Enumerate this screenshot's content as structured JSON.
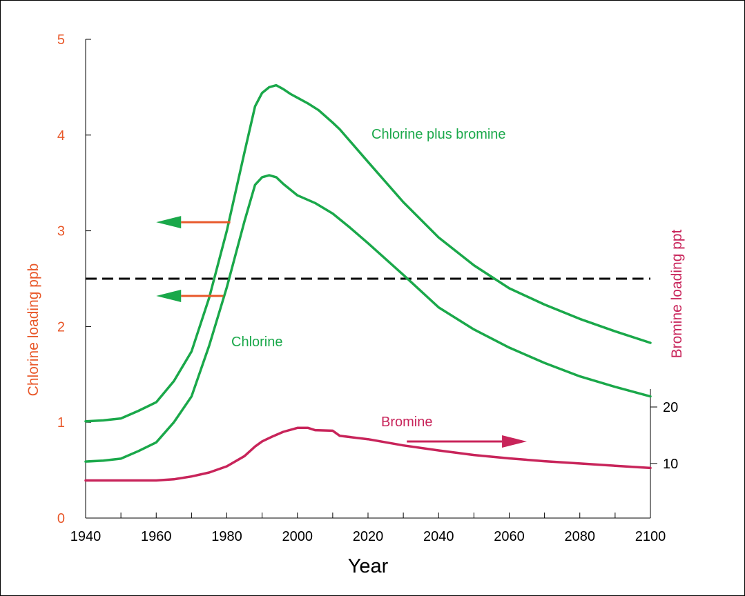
{
  "chart_data": {
    "type": "line",
    "x_ticks": [
      1940,
      1960,
      1980,
      2000,
      2020,
      2040,
      2060,
      2080,
      2100
    ],
    "xlim": [
      1940,
      2100
    ],
    "xlabel": "Year",
    "ylabel_left": "Chlorine  loading  ppb",
    "ylim_left": [
      0,
      5
    ],
    "y_ticks_left": [
      0,
      1,
      2,
      3,
      4,
      5
    ],
    "ylabel_right": "Bromine loading ppt",
    "y_ticks_right": [
      10,
      20
    ],
    "bromine_axis_map": {
      "ppt": [
        10,
        20
      ],
      "ppb_equivalent": [
        0.57,
        1.16
      ]
    },
    "threshold_ppb": 2.5,
    "colors": {
      "left_axis": "#e8582a",
      "chlorine": "#1aa84a",
      "bromine": "#c8245a",
      "threshold": "#000000"
    },
    "series": [
      {
        "name": "Chlorine plus bromine",
        "axis": "left",
        "x": [
          1940,
          1945,
          1950,
          1955,
          1960,
          1965,
          1970,
          1975,
          1980,
          1985,
          1988,
          1990,
          1992,
          1994,
          1996,
          1998,
          2000,
          2003,
          2006,
          2010,
          2012,
          2020,
          2030,
          2040,
          2050,
          2060,
          2070,
          2080,
          2090,
          2100
        ],
        "y": [
          1.01,
          1.02,
          1.04,
          1.12,
          1.21,
          1.43,
          1.74,
          2.3,
          3.0,
          3.82,
          4.3,
          4.44,
          4.5,
          4.52,
          4.48,
          4.43,
          4.39,
          4.33,
          4.26,
          4.13,
          4.06,
          3.72,
          3.3,
          2.93,
          2.64,
          2.4,
          2.23,
          2.08,
          1.95,
          1.83
        ]
      },
      {
        "name": "Chlorine",
        "axis": "left",
        "x": [
          1940,
          1945,
          1950,
          1955,
          1960,
          1965,
          1970,
          1975,
          1980,
          1985,
          1988,
          1990,
          1992,
          1994,
          1996,
          1998,
          2000,
          2005,
          2010,
          2015,
          2020,
          2030,
          2040,
          2050,
          2060,
          2070,
          2080,
          2090,
          2100
        ],
        "y": [
          0.59,
          0.6,
          0.62,
          0.7,
          0.79,
          1.0,
          1.27,
          1.8,
          2.41,
          3.1,
          3.48,
          3.56,
          3.58,
          3.56,
          3.49,
          3.43,
          3.37,
          3.29,
          3.18,
          3.03,
          2.87,
          2.54,
          2.2,
          1.97,
          1.78,
          1.62,
          1.48,
          1.37,
          1.27
        ]
      },
      {
        "name": "Bromine",
        "axis": "right",
        "x": [
          1940,
          1950,
          1960,
          1965,
          1970,
          1975,
          1980,
          1985,
          1988,
          1990,
          1993,
          1996,
          2000,
          2003,
          2005,
          2010,
          2012,
          2020,
          2030,
          2040,
          2050,
          2060,
          2070,
          2080,
          2090,
          2100
        ],
        "y": [
          7.0,
          7.0,
          7.0,
          7.2,
          7.7,
          8.4,
          9.5,
          11.3,
          13.0,
          13.9,
          14.8,
          15.6,
          16.3,
          16.3,
          15.9,
          15.8,
          14.9,
          14.3,
          13.2,
          12.3,
          11.5,
          10.9,
          10.4,
          10.0,
          9.6,
          9.2
        ]
      }
    ],
    "labels": {
      "chlorine_plus_bromine": "Chlorine plus bromine",
      "chlorine": "Chlorine",
      "bromine": "Bromine"
    },
    "arrows": [
      {
        "from_x": 1981,
        "to_x": 1960,
        "y_ppb": 3.09,
        "direction": "left"
      },
      {
        "from_x": 1979,
        "to_x": 1960,
        "y_ppb": 2.32,
        "direction": "left"
      },
      {
        "from_x": 2031,
        "to_x": 2065,
        "y_ppb": 0.8,
        "direction": "right"
      }
    ]
  }
}
